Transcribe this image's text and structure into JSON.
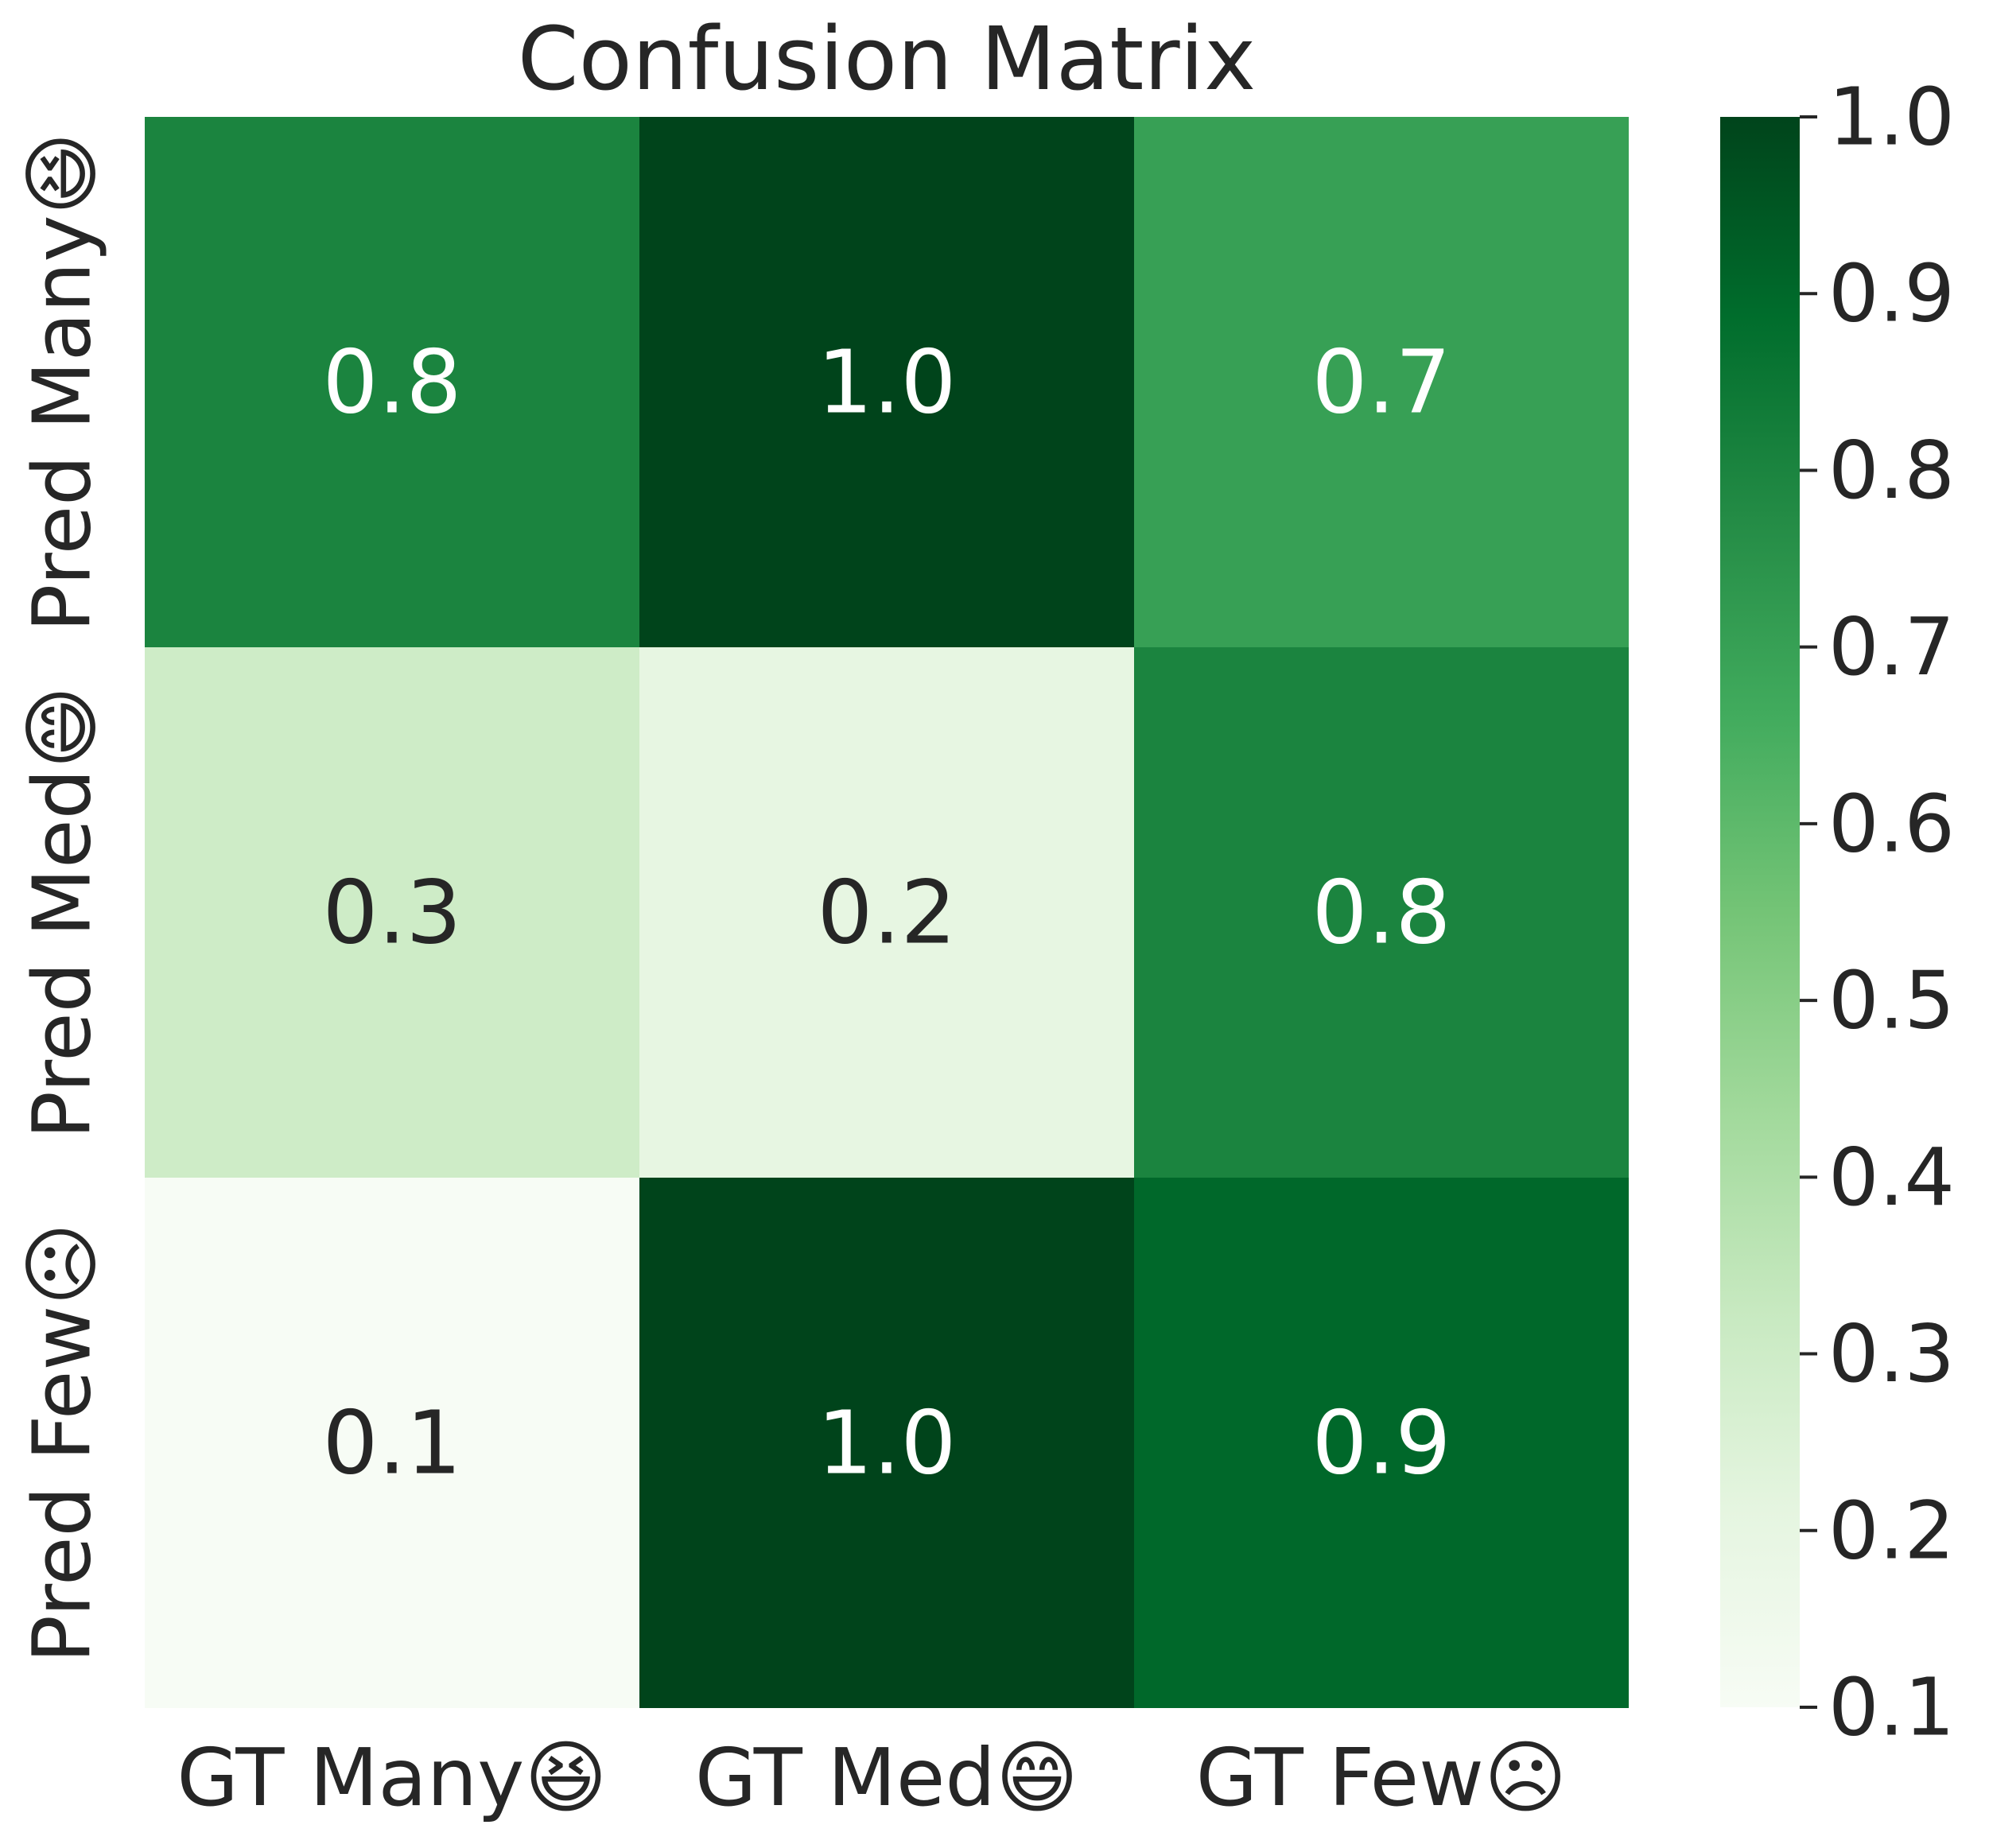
{
  "chart_data": {
    "type": "heatmap",
    "title": "Confusion Matrix",
    "x_categories": [
      "GT Many😆",
      "GT Med😄",
      "GT Few☹"
    ],
    "y_categories": [
      "Pred Many😆",
      "Pred Med😄",
      "Pred Few☹"
    ],
    "values": [
      [
        0.8,
        1.0,
        0.7
      ],
      [
        0.3,
        0.2,
        0.8
      ],
      [
        0.1,
        1.0,
        0.9
      ]
    ],
    "value_labels": [
      [
        "0.8",
        "1.0",
        "0.7"
      ],
      [
        "0.3",
        "0.2",
        "0.8"
      ],
      [
        "0.1",
        "1.0",
        "0.9"
      ]
    ],
    "colorbar": {
      "range": [
        0.1,
        1.0
      ],
      "ticks": [
        1.0,
        0.9,
        0.8,
        0.7,
        0.6,
        0.5,
        0.4,
        0.3,
        0.2,
        0.1
      ],
      "tick_labels": [
        "1.0",
        "0.9",
        "0.8",
        "0.7",
        "0.6",
        "0.5",
        "0.4",
        "0.3",
        "0.2",
        "0.1"
      ],
      "colormap": "Greens"
    },
    "colors": {
      "low": "#f7fcf5",
      "high": "#00441b",
      "text_dark": "#262626",
      "text_light": "#ffffff"
    }
  }
}
